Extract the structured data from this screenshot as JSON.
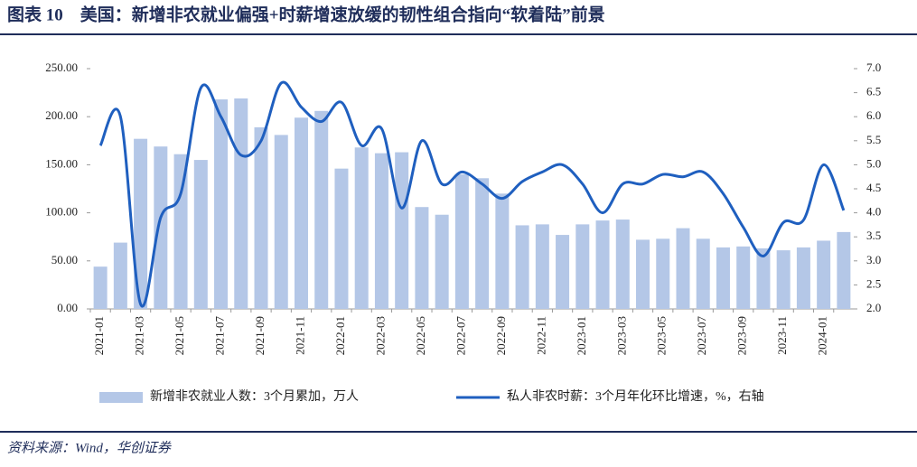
{
  "chart_data": {
    "type": "bar",
    "title": "图表 10　美国：新增非农就业偏强+时薪增速放缓的韧性组合指向“软着陆”前景",
    "source": "资料来源：Wind，华创证券",
    "categories": [
      "2021-01",
      null,
      "2021-03",
      null,
      "2021-05",
      null,
      "2021-07",
      null,
      "2021-09",
      null,
      "2021-11",
      null,
      "2022-01",
      null,
      "2022-03",
      null,
      "2022-05",
      null,
      "2022-07",
      null,
      "2022-09",
      null,
      "2022-11",
      null,
      "2023-01",
      null,
      "2023-03",
      null,
      "2023-05",
      null,
      "2023-07",
      null,
      "2023-09",
      null,
      "2023-11",
      null,
      "2024-01",
      null
    ],
    "series": [
      {
        "name": "新增非农就业人数：3个月累加，万人",
        "type": "bar",
        "color": "#b4c7e7",
        "values": [
          44,
          69,
          177,
          169,
          161,
          155,
          218,
          219,
          189,
          181,
          199,
          206,
          146,
          168,
          162,
          163,
          106,
          98,
          140,
          136,
          120,
          87,
          88,
          77,
          88,
          92,
          93,
          72,
          73,
          84,
          73,
          64,
          65,
          63,
          61,
          64,
          71,
          80
        ]
      },
      {
        "name": "私人非农时薪：3个月年化环比增速，%，右轴",
        "type": "line",
        "axis": "y2",
        "color": "#1f5fbf",
        "values": [
          5.4,
          6.0,
          2.1,
          3.9,
          4.4,
          6.6,
          6.0,
          5.2,
          5.5,
          6.7,
          6.2,
          5.9,
          6.3,
          5.4,
          5.75,
          4.1,
          5.5,
          4.6,
          4.85,
          4.6,
          4.3,
          4.65,
          4.85,
          5.0,
          4.6,
          4.0,
          4.6,
          4.6,
          4.8,
          4.75,
          4.85,
          4.4,
          3.7,
          3.1,
          3.8,
          3.85,
          5.0,
          4.05
        ]
      }
    ],
    "ylim": [
      0,
      250
    ],
    "yticks": [
      {
        "value": 0,
        "label": "0.00"
      },
      {
        "value": 50,
        "label": "50.00"
      },
      {
        "value": 100,
        "label": "100.00"
      },
      {
        "value": 150,
        "label": "150.00"
      },
      {
        "value": 200,
        "label": "200.00"
      },
      {
        "value": 250,
        "label": "250.00"
      }
    ],
    "y2lim": [
      2,
      7
    ],
    "y2ticks": [
      {
        "value": 2,
        "label": "2.0"
      },
      2.5,
      {
        "value": 3,
        "label": "3.0"
      },
      3.5,
      {
        "value": 4,
        "label": "4.0"
      },
      4.5,
      {
        "value": 5,
        "label": "5.0"
      },
      5.5,
      {
        "value": 6,
        "label": "6.0"
      },
      6.5,
      {
        "value": 7,
        "label": "7.0"
      }
    ],
    "legend": "bottom",
    "grid": false
  }
}
